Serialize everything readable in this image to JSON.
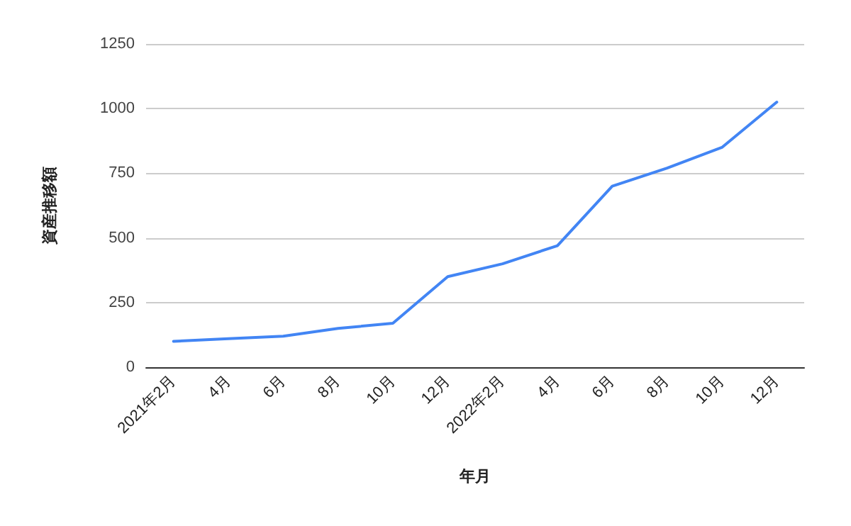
{
  "chart_data": {
    "type": "line",
    "xlabel": "年月",
    "ylabel": "資産推移額",
    "categories": [
      "2021年2月",
      "4月",
      "6月",
      "8月",
      "10月",
      "12月",
      "2022年2月",
      "4月",
      "6月",
      "8月",
      "10月",
      "12月"
    ],
    "series": [
      {
        "color": "#4285f4",
        "values": [
          100,
          110,
          120,
          150,
          170,
          350,
          400,
          470,
          700,
          770,
          850,
          1025
        ]
      }
    ],
    "ylim": [
      0,
      1250
    ],
    "yticks": [
      0,
      250,
      500,
      750,
      1000,
      1250
    ],
    "grid": "y",
    "marker": "none",
    "line_style": "solid"
  }
}
